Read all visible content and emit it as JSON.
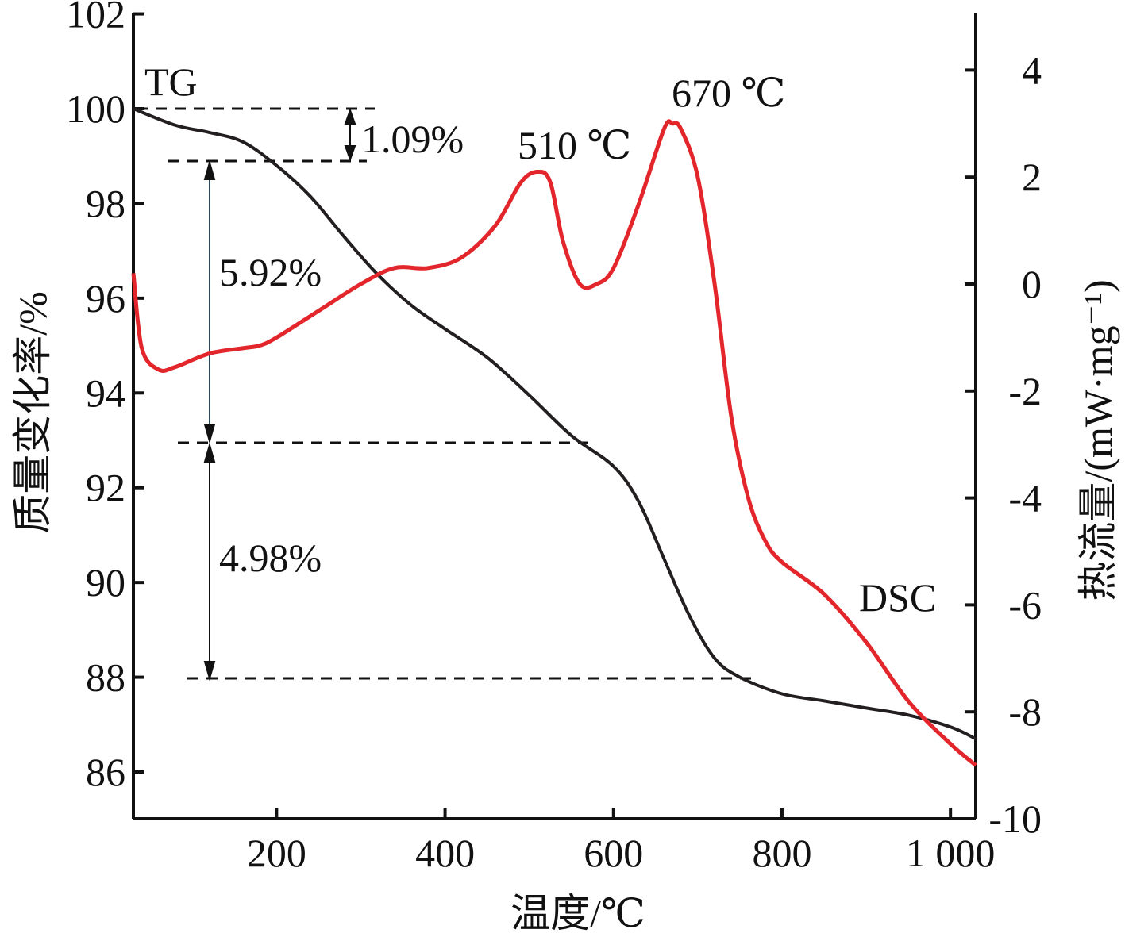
{
  "chart_data": {
    "type": "line",
    "xlabel": "温度/℃",
    "ylabel_left": "质量变化率/%",
    "ylabel_right": "热流量/(mW·mg⁻¹)",
    "xlim": [
      30,
      1030
    ],
    "ylim_left": [
      85,
      102
    ],
    "ylim_right": [
      -10,
      5
    ],
    "x_ticks": [
      200,
      400,
      600,
      800,
      1000
    ],
    "x_tick_labels": [
      "200",
      "400",
      "600",
      "800",
      "1 000"
    ],
    "y_left_ticks": [
      86,
      88,
      90,
      92,
      94,
      96,
      98,
      100,
      102
    ],
    "y_left_tick_labels": [
      "86",
      "88",
      "90",
      "92",
      "94",
      "96",
      "98",
      "100",
      "102"
    ],
    "y_right_ticks": [
      -10,
      -8,
      -6,
      -4,
      -2,
      0,
      2,
      4
    ],
    "y_right_tick_labels": [
      "-10",
      "-8",
      "-6",
      "-4",
      "-2",
      "0",
      "2",
      "4"
    ],
    "series": [
      {
        "name": "TG",
        "axis": "left",
        "color": "#231f20",
        "x": [
          30,
          80,
          120,
          160,
          200,
          240,
          280,
          320,
          360,
          400,
          450,
          500,
          550,
          600,
          630,
          660,
          690,
          720,
          750,
          800,
          850,
          900,
          950,
          1000,
          1030
        ],
        "y": [
          100.0,
          99.65,
          99.5,
          99.3,
          98.8,
          98.15,
          97.3,
          96.5,
          95.85,
          95.35,
          94.75,
          93.95,
          93.1,
          92.45,
          91.7,
          90.5,
          89.3,
          88.4,
          88.0,
          87.65,
          87.5,
          87.35,
          87.2,
          86.95,
          86.7
        ]
      },
      {
        "name": "DSC",
        "axis": "right",
        "color": "#e3262b",
        "x": [
          30,
          40,
          60,
          80,
          120,
          160,
          180,
          200,
          250,
          300,
          340,
          380,
          420,
          460,
          490,
          510,
          525,
          540,
          560,
          580,
          600,
          630,
          660,
          670,
          680,
          700,
          720,
          740,
          760,
          780,
          800,
          850,
          900,
          950,
          1000,
          1030
        ],
        "y": [
          0.2,
          -1.2,
          -1.6,
          -1.55,
          -1.3,
          -1.2,
          -1.15,
          -1.0,
          -0.5,
          0.0,
          0.3,
          0.3,
          0.5,
          1.1,
          1.9,
          2.1,
          1.9,
          0.8,
          0.0,
          0.0,
          0.3,
          1.5,
          2.9,
          3.0,
          2.9,
          2.0,
          0.0,
          -2.5,
          -4.0,
          -4.8,
          -5.2,
          -5.8,
          -6.7,
          -7.8,
          -8.6,
          -9.0
        ]
      }
    ],
    "annotations": [
      {
        "text": "TG"
      },
      {
        "text": "DSC"
      },
      {
        "text": "510 ℃"
      },
      {
        "text": "670 ℃"
      },
      {
        "text": "1.09%"
      },
      {
        "text": "5.92%"
      },
      {
        "text": "4.98%"
      }
    ],
    "grid": false,
    "legend": "none"
  }
}
